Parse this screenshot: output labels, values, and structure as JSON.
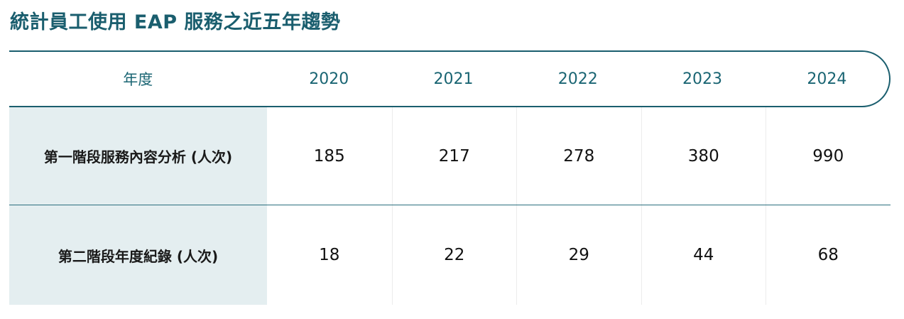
{
  "title": "統計員工使用 EAP 服務之近五年趨勢",
  "table": {
    "header": {
      "label": "年度",
      "years": [
        "2020",
        "2021",
        "2022",
        "2023",
        "2024"
      ]
    },
    "rows": [
      {
        "label": "第一階段服務內容分析 (人次)",
        "values": [
          "185",
          "217",
          "278",
          "380",
          "990"
        ]
      },
      {
        "label": "第二階段年度紀錄 (人次)",
        "values": [
          "18",
          "22",
          "29",
          "44",
          "68"
        ]
      }
    ]
  },
  "colors": {
    "accent": "#1a5e6e",
    "label_background": "#e4eef0"
  }
}
